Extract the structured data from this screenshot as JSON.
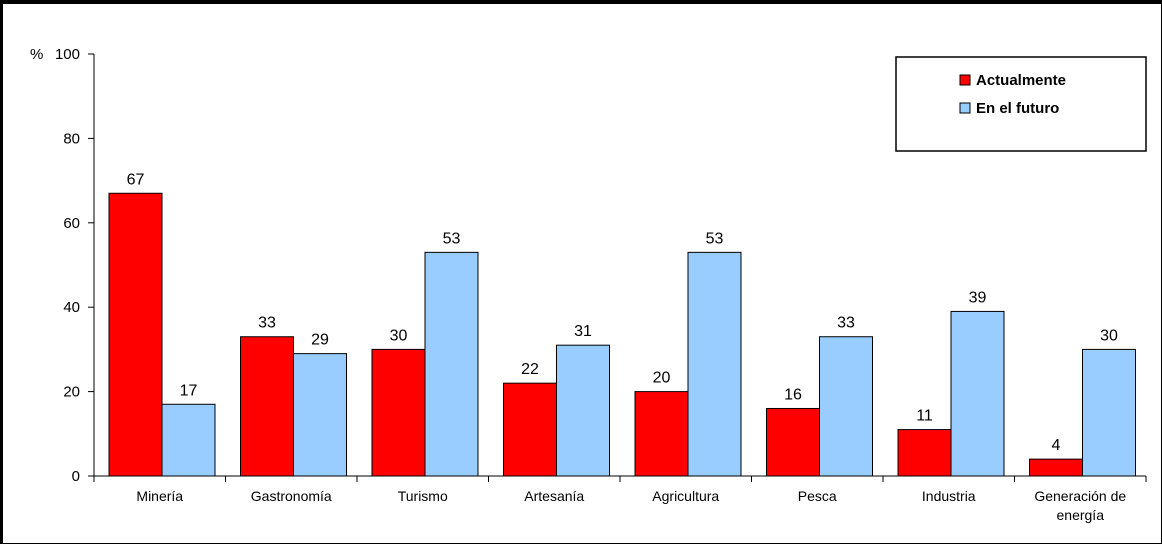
{
  "chart_data": {
    "type": "bar",
    "ylabel": "%",
    "ylim": [
      0,
      100
    ],
    "yticks": [
      0,
      20,
      40,
      60,
      80,
      100
    ],
    "categories": [
      [
        "Minería"
      ],
      [
        "Gastronomía"
      ],
      [
        "Turismo"
      ],
      [
        "Artesanía"
      ],
      [
        "Agricultura"
      ],
      [
        "Pesca"
      ],
      [
        "Industria"
      ],
      [
        "Generación de",
        "energía"
      ]
    ],
    "series": [
      {
        "name": "Actualmente",
        "color": "#ff0000",
        "values": [
          67,
          33,
          30,
          22,
          20,
          16,
          11,
          4
        ]
      },
      {
        "name": "En el futuro",
        "color": "#99ccff",
        "values": [
          17,
          29,
          53,
          31,
          53,
          33,
          39,
          30
        ]
      }
    ],
    "legend": "top-right",
    "grid": false
  }
}
